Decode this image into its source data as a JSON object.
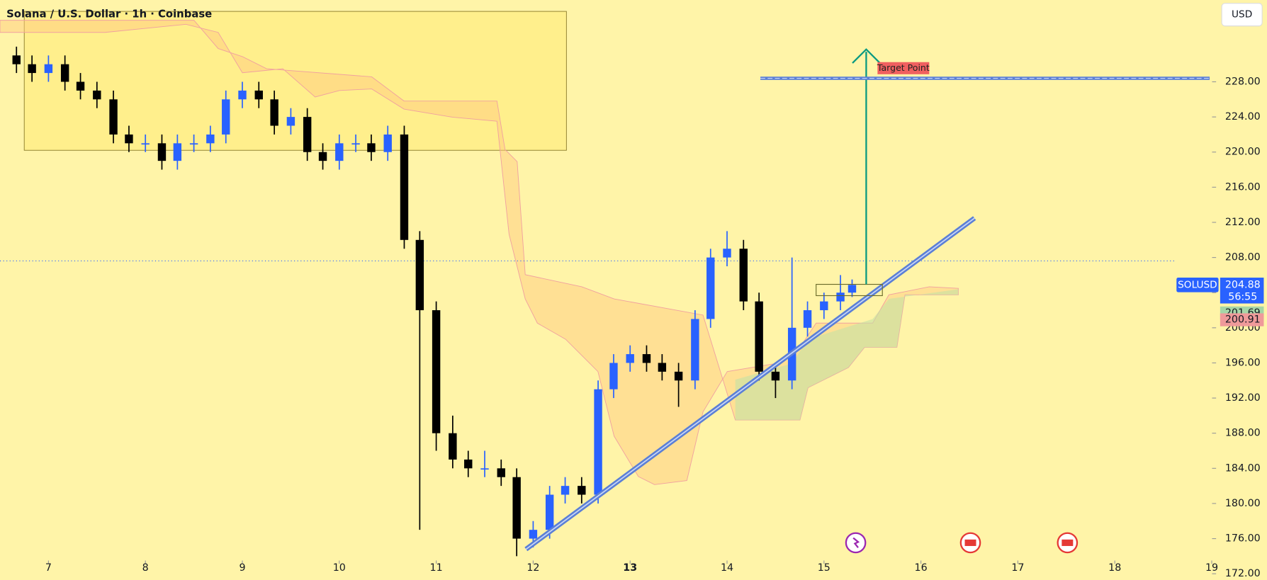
{
  "chart_data": {
    "type": "candlestick",
    "title": "Solana / U.S. Dollar · 1h · Coinbase",
    "symbol": "SOLUSD",
    "currency": "USD",
    "x": [
      6.67,
      6.83,
      7,
      7.17,
      7.33,
      7.5,
      7.67,
      7.83,
      8,
      8.17,
      8.33,
      8.5,
      8.67,
      8.83,
      9,
      9.17,
      9.33,
      9.5,
      9.67,
      9.83,
      10,
      10.17,
      10.33,
      10.5,
      10.67,
      10.83,
      11,
      11.17,
      11.33,
      11.5,
      11.67,
      11.83,
      12,
      12.17,
      12.33,
      12.5,
      12.67,
      12.83,
      13,
      13.17,
      13.33,
      13.5,
      13.67,
      13.83,
      14,
      14.17,
      14.33,
      14.5,
      14.67,
      14.83,
      15,
      15.17,
      15.29
    ],
    "open": [
      231,
      230,
      229,
      230,
      228,
      227,
      226,
      222,
      221,
      221,
      219,
      221,
      221,
      222,
      226,
      227,
      226,
      223,
      224,
      220,
      219,
      221,
      221,
      220,
      222,
      210,
      202,
      188,
      185,
      184,
      184,
      183,
      176,
      177,
      181,
      182,
      181,
      193,
      196,
      197,
      196,
      195,
      194,
      201,
      208,
      209,
      203,
      195,
      194,
      200,
      202,
      203,
      204
    ],
    "high": [
      232,
      231,
      231,
      231,
      229,
      228,
      227,
      223,
      222,
      222,
      222,
      222,
      223,
      227,
      228,
      228,
      227,
      225,
      225,
      221,
      222,
      222,
      222,
      223,
      223,
      211,
      203,
      190,
      186,
      186,
      185,
      184,
      178,
      182,
      183,
      183,
      194,
      197,
      198,
      198,
      197,
      196,
      202,
      209,
      211,
      210,
      204,
      196,
      208,
      203,
      204,
      206,
      205.5
    ],
    "low": [
      229,
      228,
      228,
      227,
      226,
      225,
      221,
      220,
      220,
      218,
      218,
      220,
      220,
      221,
      225,
      225,
      222,
      222,
      219,
      218,
      218,
      220,
      219,
      219,
      209,
      177,
      186,
      184,
      183,
      183,
      182,
      174,
      175,
      176,
      180,
      180,
      180,
      192,
      195,
      195,
      194,
      191,
      193,
      200,
      207,
      202,
      194,
      192,
      193,
      199,
      201,
      202,
      203.5
    ],
    "close": [
      230,
      229,
      230,
      228,
      227,
      226,
      222,
      221,
      221,
      219,
      221,
      221,
      222,
      226,
      227,
      226,
      223,
      224,
      220,
      219,
      221,
      221,
      220,
      222,
      210,
      202,
      188,
      185,
      184,
      184,
      183,
      176,
      177,
      181,
      182,
      181,
      193,
      196,
      197,
      196,
      195,
      194,
      201,
      208,
      209,
      203,
      195,
      194,
      200,
      202,
      203,
      204,
      204.88
    ],
    "up_color": "#2962ff",
    "down_color": "#000000",
    "xlim": [
      6.5,
      19.57
    ],
    "xticks": [
      7,
      8,
      9,
      10,
      11,
      12,
      13,
      14,
      15,
      16,
      17,
      18,
      19
    ],
    "ylim": [
      171.3,
      237.3
    ],
    "yticks": [
      {
        "value": 172,
        "label": "172.00"
      },
      {
        "value": 176,
        "label": "176.00"
      },
      {
        "value": 180,
        "label": "180.00"
      },
      {
        "value": 184,
        "label": "184.00"
      },
      {
        "value": 188,
        "label": "188.00"
      },
      {
        "value": 192,
        "label": "192.00"
      },
      {
        "value": 196,
        "label": "196.00"
      },
      {
        "value": 200,
        "label": "200.00"
      },
      {
        "value": 204,
        "label": "204.00"
      },
      {
        "value": 208,
        "label": "208.00"
      },
      {
        "value": 212,
        "label": "212.00"
      },
      {
        "value": 216,
        "label": "216.00"
      },
      {
        "value": 220,
        "label": "220.00"
      },
      {
        "value": 224,
        "label": "224.00"
      },
      {
        "value": 228,
        "label": "228.00"
      }
    ],
    "last_price": 204.88,
    "countdown": "56:55",
    "levels": [
      {
        "value": 201.69,
        "color": "#a5d6a7"
      },
      {
        "value": 200.91,
        "color": "#ef9a9a"
      }
    ],
    "target": {
      "label": "Target Point",
      "value": 228.4
    }
  }
}
